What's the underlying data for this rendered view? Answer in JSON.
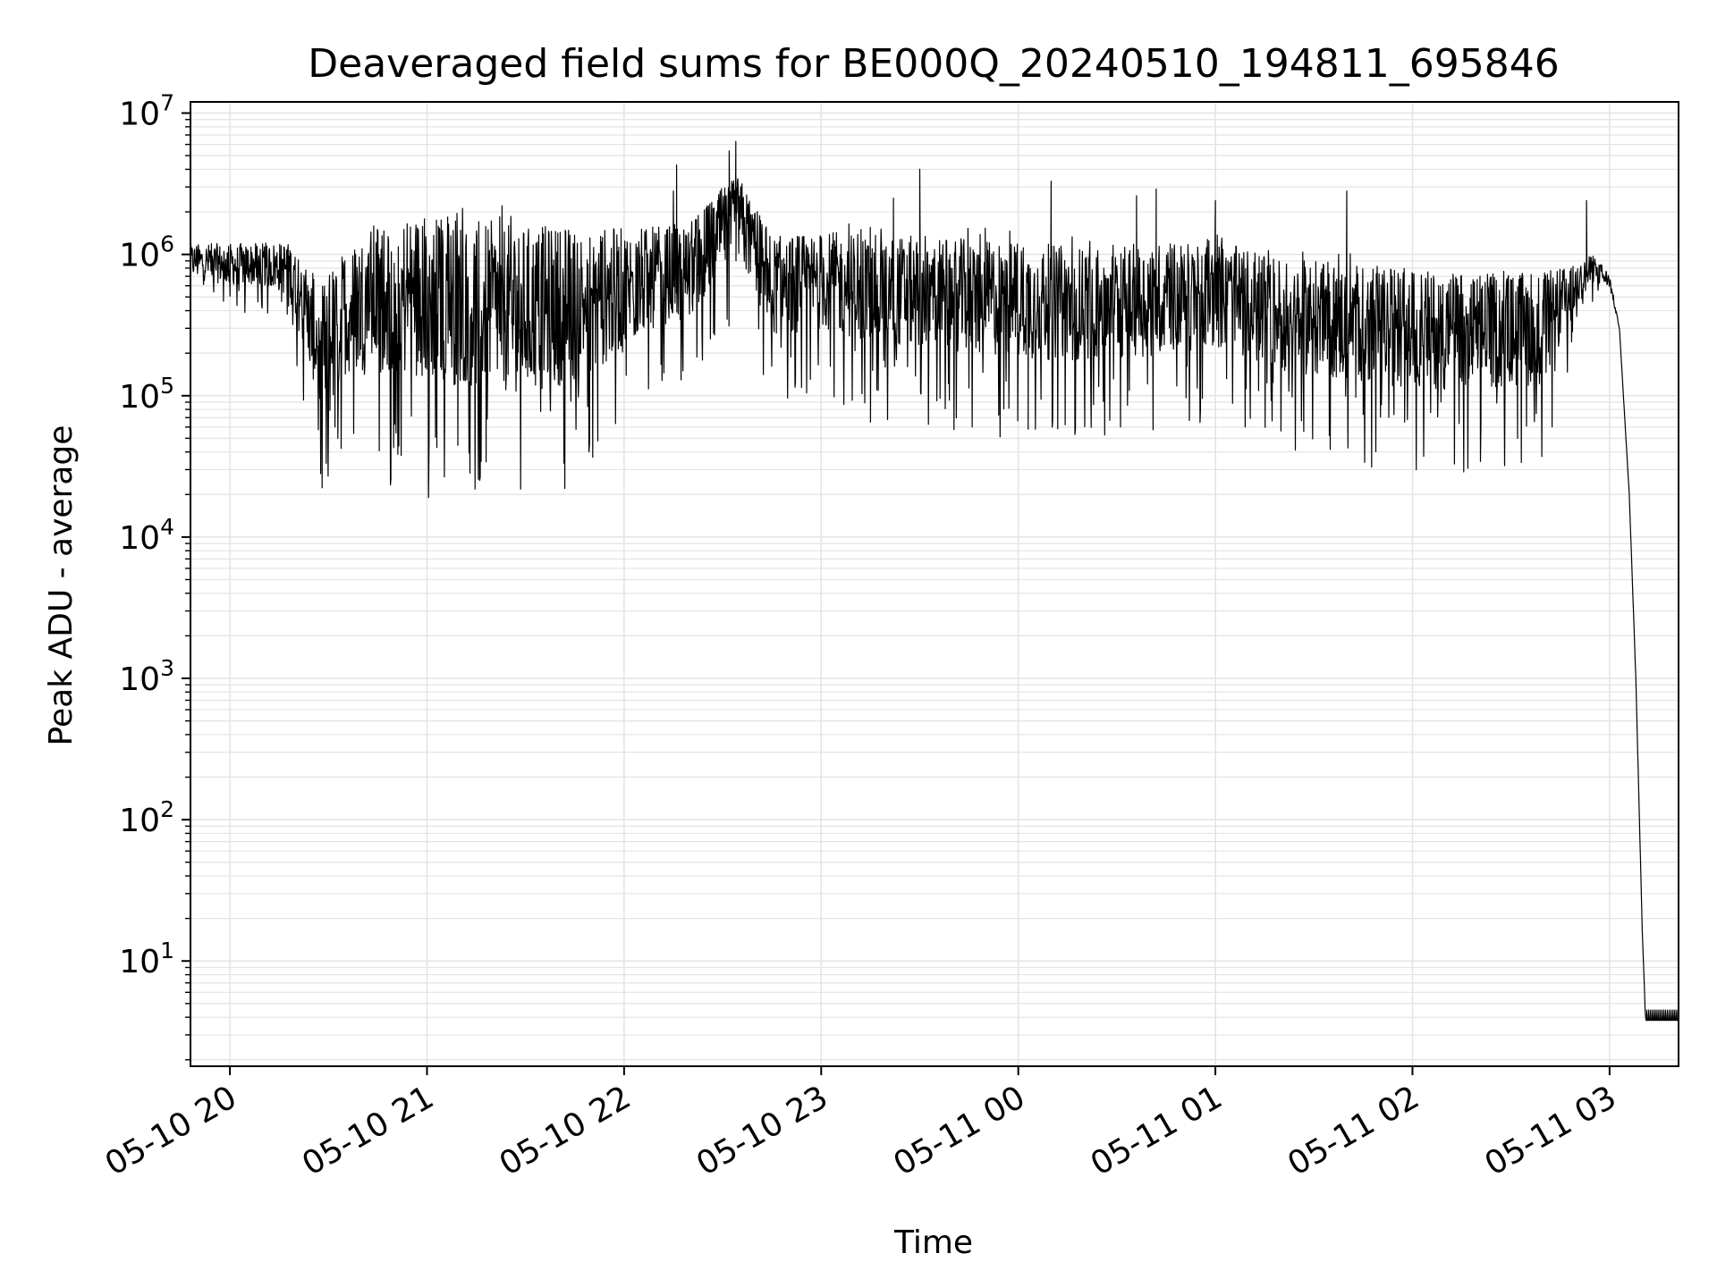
{
  "chart_data": {
    "type": "line",
    "title": "Deaveraged field sums for BE000Q_20240510_194811_695846",
    "xlabel": "Time",
    "ylabel": "Peak ADU - average",
    "y_scale": "log",
    "ylim": [
      1.8,
      12000000
    ],
    "xlim": [
      "2024-05-10 19:48",
      "2024-05-11 03:21"
    ],
    "grid": true,
    "grid_color": "#e3e3e3",
    "line_color": "#000000",
    "x_ticks": [
      {
        "label": "05-10 20",
        "t": "2024-05-10 20:00"
      },
      {
        "label": "05-10 21",
        "t": "2024-05-10 21:00"
      },
      {
        "label": "05-10 22",
        "t": "2024-05-10 22:00"
      },
      {
        "label": "05-10 23",
        "t": "2024-05-10 23:00"
      },
      {
        "label": "05-11 00",
        "t": "2024-05-11 00:00"
      },
      {
        "label": "05-11 01",
        "t": "2024-05-11 01:00"
      },
      {
        "label": "05-11 02",
        "t": "2024-05-11 02:00"
      },
      {
        "label": "05-11 03",
        "t": "2024-05-11 03:00"
      }
    ],
    "y_ticks": [
      {
        "base": "10",
        "exp": "1",
        "value": 10
      },
      {
        "base": "10",
        "exp": "2",
        "value": 100
      },
      {
        "base": "10",
        "exp": "3",
        "value": 1000
      },
      {
        "base": "10",
        "exp": "4",
        "value": 10000
      },
      {
        "base": "10",
        "exp": "5",
        "value": 100000
      },
      {
        "base": "10",
        "exp": "6",
        "value": 1000000
      },
      {
        "base": "10",
        "exp": "7",
        "value": 10000000
      }
    ],
    "series": [
      {
        "x": [
          "2024-05-10 19:48",
          "2024-05-10 20:00",
          "2024-05-10 20:10",
          "2024-05-10 20:18",
          "2024-05-10 20:25",
          "2024-05-10 20:30",
          "2024-05-10 20:35",
          "2024-05-10 20:45",
          "2024-05-10 21:00",
          "2024-05-10 21:15",
          "2024-05-10 21:30",
          "2024-05-10 21:45",
          "2024-05-10 22:00",
          "2024-05-10 22:10",
          "2024-05-10 22:20",
          "2024-05-10 22:30",
          "2024-05-10 22:35",
          "2024-05-10 22:45",
          "2024-05-10 23:00",
          "2024-05-10 23:20",
          "2024-05-10 23:40",
          "2024-05-11 00:00",
          "2024-05-11 00:20",
          "2024-05-11 00:40",
          "2024-05-11 01:00",
          "2024-05-11 01:20",
          "2024-05-11 01:40",
          "2024-05-11 02:00",
          "2024-05-11 02:20",
          "2024-05-11 02:40",
          "2024-05-11 02:50",
          "2024-05-11 02:55",
          "2024-05-11 03:00",
          "2024-05-11 03:03",
          "2024-05-11 03:06",
          "2024-05-11 03:08",
          "2024-05-11 03:10",
          "2024-05-11 03:11",
          "2024-05-11 03:21"
        ],
        "median": [
          900000,
          850000,
          850000,
          800000,
          300000,
          200000,
          400000,
          500000,
          500000,
          450000,
          400000,
          450000,
          550000,
          700000,
          750000,
          1500000,
          1800000,
          600000,
          650000,
          550000,
          520000,
          470000,
          450000,
          480000,
          520000,
          380000,
          330000,
          300000,
          280000,
          300000,
          600000,
          800000,
          650000,
          300000,
          20000,
          1000,
          15,
          3.8,
          3.8
        ],
        "spread": [
          0.12,
          0.15,
          0.15,
          0.2,
          0.35,
          0.5,
          0.45,
          0.55,
          0.6,
          0.6,
          0.6,
          0.55,
          0.45,
          0.35,
          0.35,
          0.3,
          0.3,
          0.35,
          0.35,
          0.4,
          0.4,
          0.42,
          0.4,
          0.4,
          0.38,
          0.4,
          0.42,
          0.42,
          0.42,
          0.4,
          0.15,
          0.1,
          0.05,
          0,
          0,
          0,
          0,
          0,
          0
        ],
        "peaks": [
          {
            "t": "2024-05-10 22:15",
            "v": 2800000
          },
          {
            "t": "2024-05-10 22:16",
            "v": 4300000
          },
          {
            "t": "2024-05-10 22:32",
            "v": 5400000
          },
          {
            "t": "2024-05-10 22:34",
            "v": 6300000
          },
          {
            "t": "2024-05-10 23:22",
            "v": 2500000
          },
          {
            "t": "2024-05-10 23:30",
            "v": 4000000
          },
          {
            "t": "2024-05-11 00:10",
            "v": 3300000
          },
          {
            "t": "2024-05-11 00:36",
            "v": 2600000
          },
          {
            "t": "2024-05-11 00:42",
            "v": 2900000
          },
          {
            "t": "2024-05-11 01:00",
            "v": 2400000
          },
          {
            "t": "2024-05-11 01:40",
            "v": 2800000
          },
          {
            "t": "2024-05-11 02:53",
            "v": 2400000
          }
        ],
        "dips": [
          {
            "t": "2024-05-10 20:32",
            "v": 60000
          },
          {
            "t": "2024-05-10 21:03",
            "v": 43000
          },
          {
            "t": "2024-05-10 21:18",
            "v": 34000
          },
          {
            "t": "2024-05-10 21:52",
            "v": 48000
          },
          {
            "t": "2024-05-10 23:15",
            "v": 65000
          },
          {
            "t": "2024-05-11 00:03",
            "v": 58000
          },
          {
            "t": "2024-05-11 02:32",
            "v": 50000
          }
        ]
      }
    ]
  }
}
